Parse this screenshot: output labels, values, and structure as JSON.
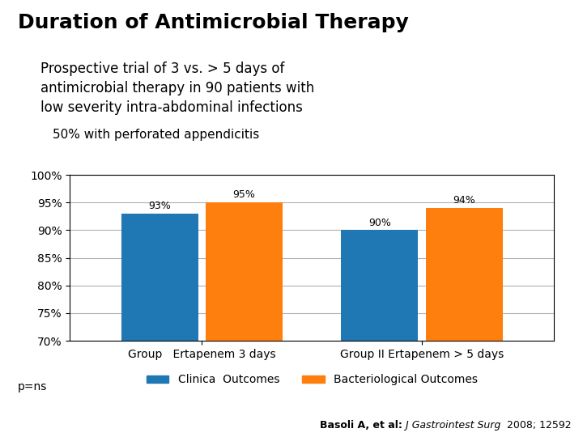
{
  "chart_data": {
    "type": "bar",
    "title": "Duration of Antimicrobial Therapy",
    "annotations": [
      "Prospective trial of 3 vs. > 5 days of",
      "antimicrobial therapy in 90 patients with",
      "low severity intra-abdominal infections",
      "50% with perforated appendicitis",
      "p=ns",
      "Basoli A, et al:",
      " J Gastrointest Surg",
      "  2008; 12592"
    ],
    "categories": [
      "Group   Ertapenem 3 days",
      "Group II Ertapenem > 5 days"
    ],
    "series": [
      {
        "name": "Clinica  Outcomes",
        "values": [
          93,
          90
        ],
        "value_labels": [
          "93%",
          "90%"
        ]
      },
      {
        "name": "Bacteriological Outcomes",
        "values": [
          95,
          94
        ],
        "value_labels": [
          "95%",
          "94%"
        ]
      }
    ],
    "ylim": [
      70,
      100
    ],
    "yticks": [
      {
        "value": 70,
        "label": "70%"
      },
      {
        "value": 75,
        "label": "75%"
      },
      {
        "value": 80,
        "label": "80%"
      },
      {
        "value": 85,
        "label": "85%"
      },
      {
        "value": 90,
        "label": "90%"
      },
      {
        "value": 95,
        "label": "95%"
      },
      {
        "value": 100,
        "label": "100%"
      }
    ],
    "grid": true,
    "legend": "lower center",
    "data_labels": true
  }
}
